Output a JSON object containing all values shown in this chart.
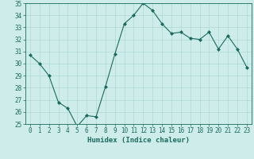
{
  "x": [
    0,
    1,
    2,
    3,
    4,
    5,
    6,
    7,
    8,
    9,
    10,
    11,
    12,
    13,
    14,
    15,
    16,
    17,
    18,
    19,
    20,
    21,
    22,
    23
  ],
  "y": [
    30.7,
    30.0,
    29.0,
    26.8,
    26.3,
    24.8,
    25.7,
    25.6,
    28.1,
    30.8,
    33.3,
    34.0,
    35.0,
    34.4,
    33.3,
    32.5,
    32.6,
    32.1,
    32.0,
    32.6,
    31.2,
    32.3,
    31.2,
    29.7
  ],
  "line_color": "#1a6b5e",
  "marker": "D",
  "marker_size": 2.0,
  "bg_color": "#ceecea",
  "grid_color": "#aed8d5",
  "xlabel": "Humidex (Indice chaleur)",
  "ylim": [
    25,
    35
  ],
  "xlim": [
    -0.5,
    23.5
  ],
  "yticks": [
    25,
    26,
    27,
    28,
    29,
    30,
    31,
    32,
    33,
    34,
    35
  ],
  "xticks": [
    0,
    1,
    2,
    3,
    4,
    5,
    6,
    7,
    8,
    9,
    10,
    11,
    12,
    13,
    14,
    15,
    16,
    17,
    18,
    19,
    20,
    21,
    22,
    23
  ],
  "tick_color": "#1a6b5e",
  "label_color": "#1a6b5e",
  "tick_fontsize": 5.5,
  "xlabel_fontsize": 6.5,
  "linewidth": 0.8
}
